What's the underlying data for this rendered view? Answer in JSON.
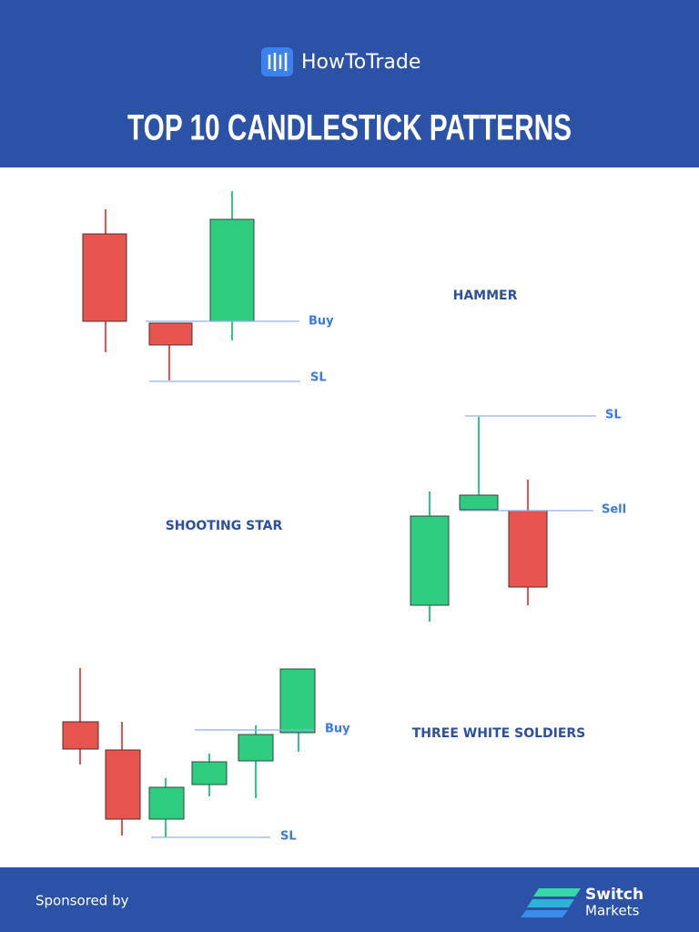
{
  "header": {
    "brand": "HowToTrade",
    "title": "TOP 10 CANDLESTICK PATTERNS"
  },
  "patterns": [
    {
      "name": "HAMMER",
      "entry": "Buy",
      "stop": "SL"
    },
    {
      "name": "SHOOTING STAR",
      "entry": "Sell",
      "stop": "SL"
    },
    {
      "name": "THREE WHITE SOLDIERS",
      "entry": "Buy",
      "stop": "SL"
    }
  ],
  "footer": {
    "sponsor_text": "Sponsored by",
    "sponsor_name_1": "Switch",
    "sponsor_name_2": "Markets"
  }
}
